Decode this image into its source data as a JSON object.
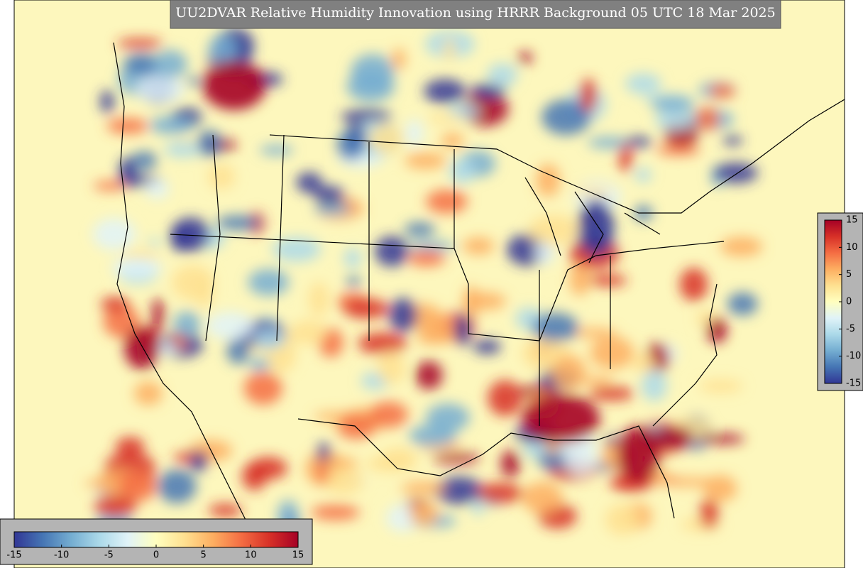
{
  "title": "UU2DVAR Relative Humidity Innovation using HRRR Background 05 UTC 18 Mar 2025",
  "colormap": [
    "#313695",
    "#4575b4",
    "#74add1",
    "#abd9e9",
    "#e0f3f8",
    "#ffffbf",
    "#fee090",
    "#fdae61",
    "#f46d43",
    "#d73027",
    "#a50026"
  ],
  "colorbars": [
    {
      "orientation": "horizontal",
      "lim": [
        -15,
        15
      ],
      "ticks": [
        -15,
        -10,
        -5,
        0,
        5,
        10,
        15
      ]
    },
    {
      "orientation": "vertical",
      "lim": [
        -15,
        15
      ],
      "ticks": [
        -15,
        -10,
        -5,
        0,
        5,
        10,
        15
      ]
    }
  ]
}
